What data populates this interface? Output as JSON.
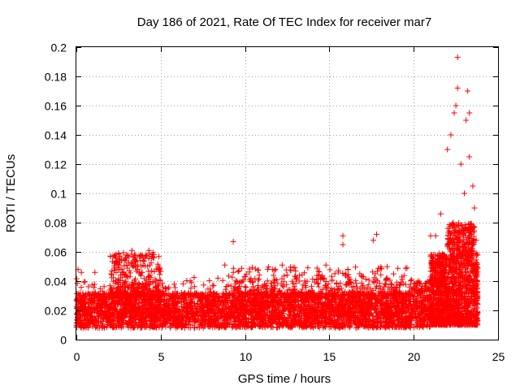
{
  "chart_data": {
    "type": "scatter",
    "title": "Day 186 of 2021, Rate Of TEC Index for receiver mar7",
    "xlabel": "GPS time / hours",
    "ylabel": "ROTI / TECUs",
    "xlim": [
      0,
      25
    ],
    "ylim": [
      0,
      0.2
    ],
    "xticks": [
      "0",
      "5",
      "10",
      "15",
      "20",
      "25"
    ],
    "yticks": [
      "0",
      "0.02",
      "0.04",
      "0.06",
      "0.08",
      "0.1",
      "0.12",
      "0.14",
      "0.16",
      "0.18",
      "0.2"
    ],
    "grid": true,
    "marker": "+",
    "color": "#ff0000",
    "series": [
      {
        "bands": [
          {
            "x": [
              0,
              20
            ],
            "typical_range": [
              0.008,
              0.032
            ]
          },
          {
            "x": [
              2,
              5
            ],
            "upper_envelope": 0.06
          },
          {
            "x": [
              9,
              20
            ],
            "upper_envelope": 0.05
          },
          {
            "x": [
              20,
              21
            ],
            "typical_range": [
              0.008,
              0.04
            ]
          },
          {
            "x": [
              21,
              23.8
            ],
            "typical_range": [
              0.01,
              0.08
            ]
          }
        ],
        "notable_points": [
          [
            0.1,
            0.048
          ],
          [
            0.3,
            0.046
          ],
          [
            1.1,
            0.046
          ],
          [
            2.5,
            0.059
          ],
          [
            3.3,
            0.061
          ],
          [
            3.8,
            0.058
          ],
          [
            4.3,
            0.061
          ],
          [
            4.6,
            0.056
          ],
          [
            8.8,
            0.051
          ],
          [
            9.3,
            0.067
          ],
          [
            12.2,
            0.051
          ],
          [
            14.8,
            0.051
          ],
          [
            15.8,
            0.071
          ],
          [
            15.8,
            0.065
          ],
          [
            17.6,
            0.068
          ],
          [
            17.8,
            0.072
          ],
          [
            19.6,
            0.049
          ],
          [
            21.0,
            0.071
          ],
          [
            21.3,
            0.071
          ],
          [
            21.6,
            0.086
          ],
          [
            22.0,
            0.13
          ],
          [
            22.2,
            0.14
          ],
          [
            22.4,
            0.155
          ],
          [
            22.5,
            0.16
          ],
          [
            22.6,
            0.172
          ],
          [
            22.6,
            0.193
          ],
          [
            22.8,
            0.12
          ],
          [
            23.0,
            0.1
          ],
          [
            23.1,
            0.15
          ],
          [
            23.2,
            0.17
          ],
          [
            23.3,
            0.125
          ],
          [
            23.3,
            0.155
          ],
          [
            23.5,
            0.105
          ],
          [
            23.6,
            0.09
          ],
          [
            23.7,
            0.068
          ]
        ]
      }
    ]
  }
}
